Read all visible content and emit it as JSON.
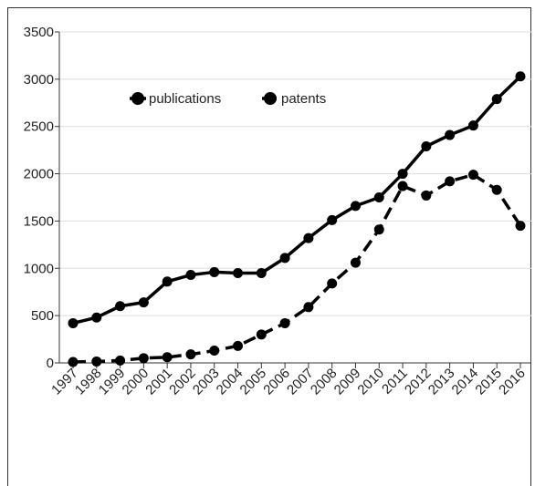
{
  "chart_data": {
    "type": "line",
    "title": "",
    "xlabel": "",
    "ylabel": "",
    "categories": [
      "1997",
      "1998",
      "1999",
      "2000",
      "2001",
      "2002",
      "2003",
      "2004",
      "2005",
      "2006",
      "2007",
      "2008",
      "2009",
      "2010",
      "2011",
      "2012",
      "2013",
      "2014",
      "2015",
      "2016"
    ],
    "ylim": [
      0,
      3500
    ],
    "yticks": [
      0,
      500,
      1000,
      1500,
      2000,
      2500,
      3000,
      3500
    ],
    "grid": true,
    "legend_position": "top-left",
    "series": [
      {
        "name": "publications",
        "line_style": "solid",
        "color": "#000000",
        "values": [
          420,
          480,
          600,
          640,
          860,
          930,
          960,
          950,
          950,
          1110,
          1320,
          1510,
          1660,
          1750,
          2000,
          2290,
          2410,
          2510,
          2790,
          3030
        ]
      },
      {
        "name": "patents",
        "line_style": "dashed",
        "color": "#000000",
        "values": [
          10,
          15,
          25,
          50,
          60,
          90,
          130,
          180,
          300,
          420,
          590,
          840,
          1060,
          1410,
          1870,
          1770,
          1920,
          1990,
          1830,
          1450
        ]
      }
    ]
  }
}
